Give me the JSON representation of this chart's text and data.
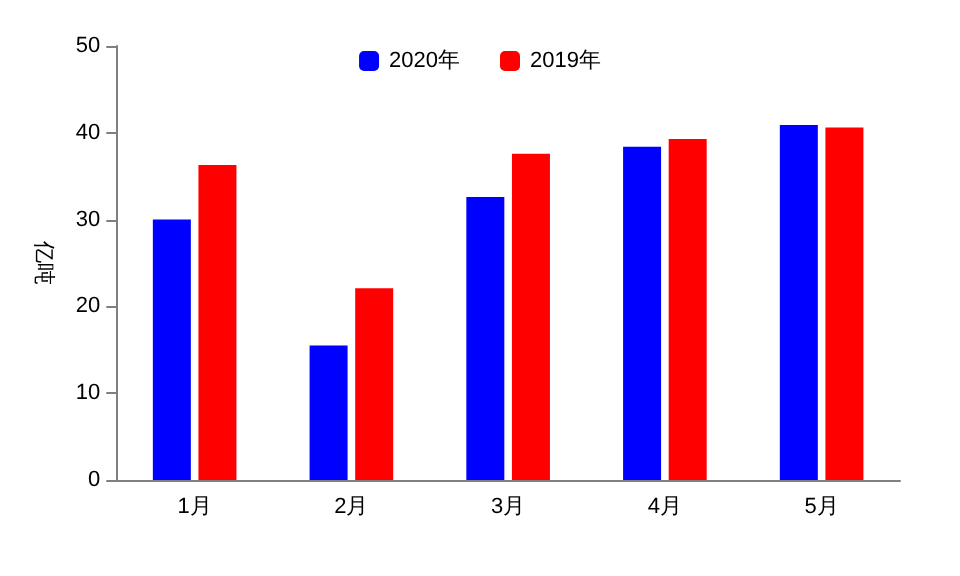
{
  "chart_data": {
    "type": "bar",
    "ylabel": "亿吨",
    "categories": [
      "1月",
      "2月",
      "3月",
      "4月",
      "5月"
    ],
    "series": [
      {
        "name": "2020年",
        "color": "#0000ff",
        "values": [
          30.0,
          15.5,
          32.6,
          38.4,
          40.9
        ]
      },
      {
        "name": "2019年",
        "color": "#ff0000",
        "values": [
          36.3,
          22.1,
          37.6,
          39.3,
          40.6
        ]
      }
    ],
    "ylim": [
      0,
      50
    ],
    "yticks": [
      0,
      10,
      20,
      30,
      40,
      50
    ],
    "grid": false,
    "legend": "top"
  }
}
